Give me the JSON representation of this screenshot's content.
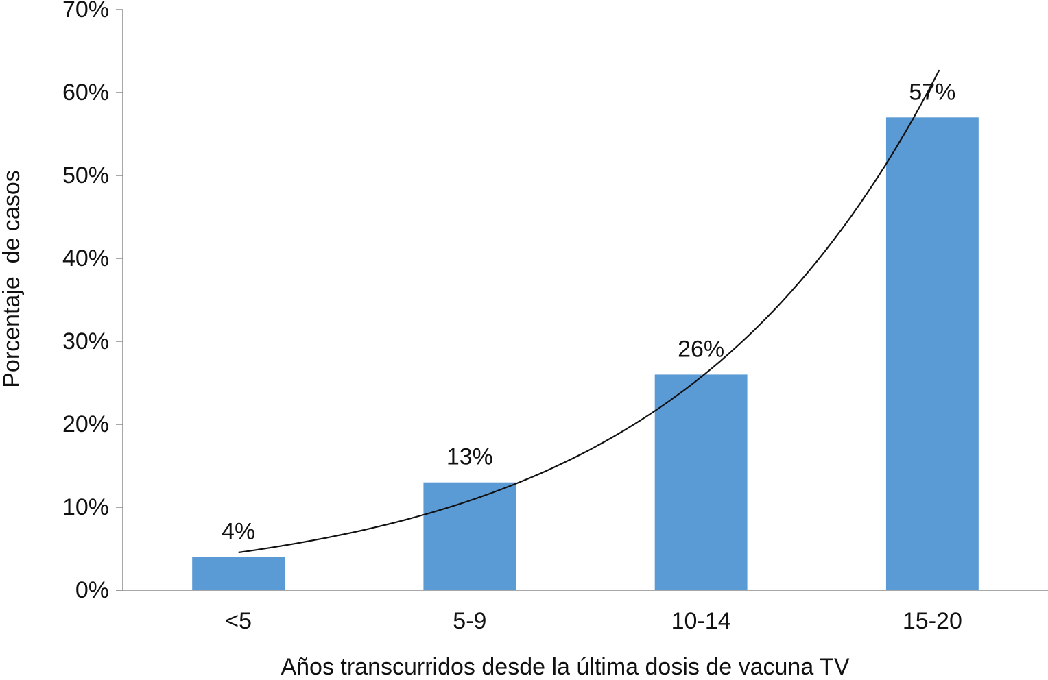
{
  "chart_data": {
    "type": "bar",
    "categories": [
      "<5",
      "5-9",
      "10-14",
      "15-20"
    ],
    "values": [
      4,
      13,
      26,
      57
    ],
    "data_labels": [
      "4%",
      "13%",
      "26%",
      "57%"
    ],
    "xlabel": "Años transcurridos desde la última dosis de vacuna TV",
    "ylabel": "Porcentaje  de casos",
    "ylim": [
      0,
      70
    ],
    "yticks": [
      0,
      10,
      20,
      30,
      40,
      50,
      60,
      70
    ],
    "ytick_labels": [
      "0%",
      "10%",
      "20%",
      "30%",
      "40%",
      "50%",
      "60%",
      "70%"
    ],
    "trendline": "exponential",
    "grid": false,
    "legend": "none",
    "colors": {
      "bar": "#5b9bd5",
      "axis": "#8c8c8c",
      "trend": "#111111"
    }
  }
}
